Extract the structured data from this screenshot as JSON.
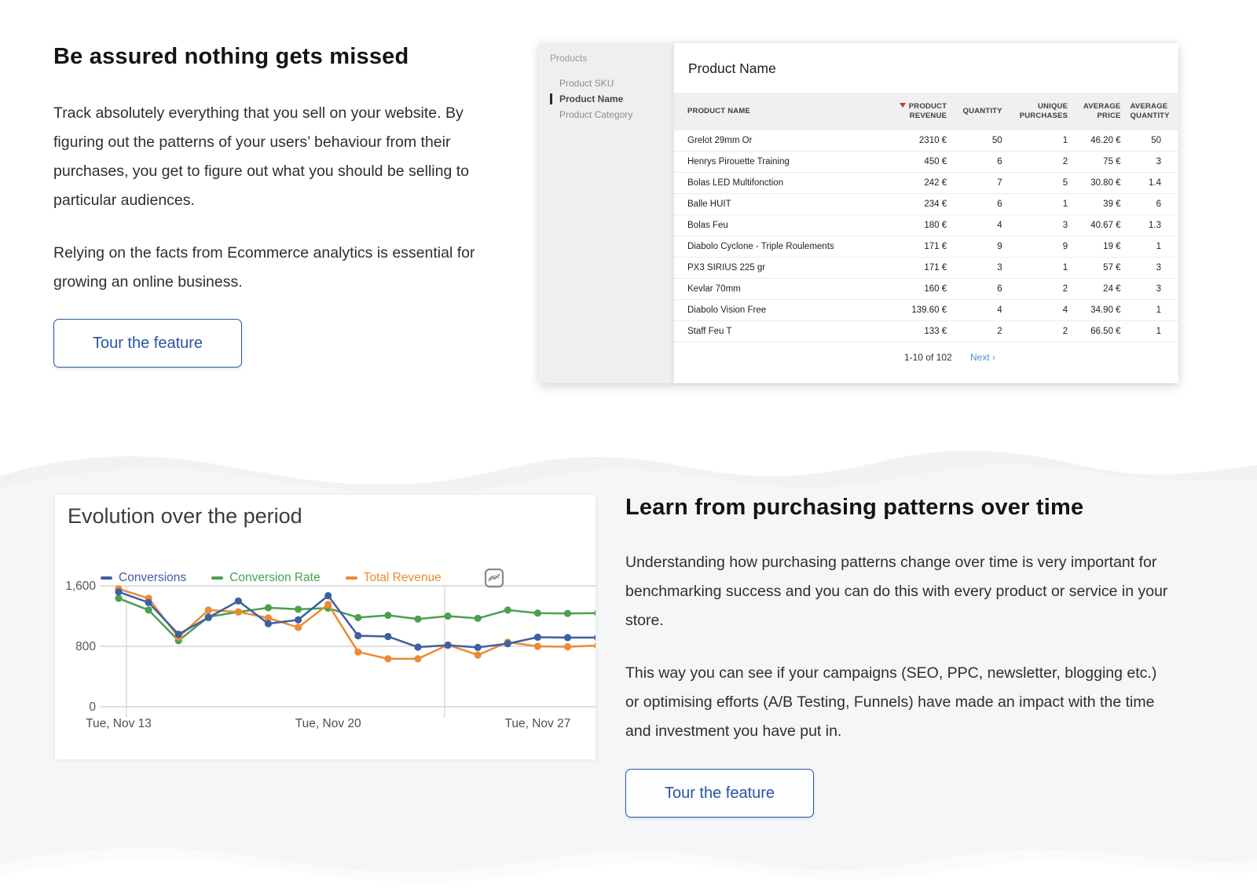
{
  "section1": {
    "heading": "Be assured nothing gets missed",
    "para1": "Track absolutely everything that you sell on your website. By figuring out the patterns of your users’ behaviour from their purchases, you get to figure out what you should be selling to particular audiences.",
    "para2": "Relying on the facts from Ecommerce analytics is essential for growing an online business.",
    "button_label": "Tour the feature"
  },
  "section2": {
    "heading": "Learn from purchasing patterns over time",
    "para1": "Understanding how purchasing patterns change over time is very important for benchmarking success and you can do this with every product or service in your store.",
    "para2": "This way you can see if your campaigns (SEO, PPC, newsletter, blogging etc.) or optimising efforts (A/B Testing, Funnels) have made an impact with the time and investment you have put in.",
    "button_label": "Tour the feature"
  },
  "product_panel": {
    "sidebar": {
      "title": "Products",
      "items": [
        {
          "label": "Product SKU",
          "active": false
        },
        {
          "label": "Product Name",
          "active": true
        },
        {
          "label": "Product Category",
          "active": false
        }
      ]
    },
    "title": "Product Name",
    "table": {
      "columns": [
        "Product Name",
        "Product Revenue",
        "Quantity",
        "Unique Purchases",
        "Average Price",
        "Average Quantity"
      ],
      "sort_column_index": 1,
      "rows": [
        [
          "Grelot 29mm Or",
          "2310 €",
          "50",
          "1",
          "46.20 €",
          "50"
        ],
        [
          "Henrys Pirouette Training",
          "450 €",
          "6",
          "2",
          "75 €",
          "3"
        ],
        [
          "Bolas LED Multifonction",
          "242 €",
          "7",
          "5",
          "30.80 €",
          "1.4"
        ],
        [
          "Balle HUIT",
          "234 €",
          "6",
          "1",
          "39 €",
          "6"
        ],
        [
          "Bolas Feu",
          "180 €",
          "4",
          "3",
          "40.67 €",
          "1.3"
        ],
        [
          "Diabolo Cyclone - Triple Roulements",
          "171 €",
          "9",
          "9",
          "19 €",
          "1"
        ],
        [
          "PX3 SIRIUS 225 gr",
          "171 €",
          "3",
          "1",
          "57 €",
          "3"
        ],
        [
          "Kevlar 70mm",
          "160 €",
          "6",
          "2",
          "24 €",
          "3"
        ],
        [
          "Diabolo Vision Free",
          "139.60 €",
          "4",
          "4",
          "34.90 €",
          "1"
        ],
        [
          "Staff Feu T",
          "133 €",
          "2",
          "2",
          "66.50 €",
          "1"
        ]
      ],
      "pagination": {
        "range": "1-10 of 102",
        "next_label": "Next ›"
      }
    }
  },
  "chart_data": {
    "type": "line",
    "title": "Evolution over the period",
    "x_tick_labels": [
      "Tue, Nov 13",
      "Tue, Nov 20",
      "Tue, Nov 27"
    ],
    "x_tick_indices": [
      0,
      7,
      14
    ],
    "n_points": 17,
    "ylim": [
      0,
      1600
    ],
    "yticks": [
      1600,
      800,
      0
    ],
    "ytick_labels": [
      "1,600",
      "800",
      "0"
    ],
    "grid": "on",
    "legend_position": "top",
    "series": [
      {
        "name": "Conversions",
        "color": "#3e5fa3",
        "values": [
          1520,
          1380,
          960,
          1180,
          1400,
          1100,
          1150,
          1470,
          940,
          930,
          790,
          815,
          785,
          835,
          920,
          915,
          915
        ]
      },
      {
        "name": "Conversion Rate",
        "color": "#4aa04e",
        "values": [
          1435,
          1280,
          875,
          1190,
          1255,
          1310,
          1290,
          1305,
          1180,
          1210,
          1160,
          1200,
          1170,
          1280,
          1240,
          1235,
          1240
        ]
      },
      {
        "name": "Total Revenue",
        "color": "#ec8b33",
        "values": [
          1560,
          1435,
          920,
          1280,
          1255,
          1175,
          1050,
          1355,
          725,
          635,
          635,
          820,
          685,
          855,
          800,
          795,
          810
        ]
      }
    ]
  },
  "accents": {
    "link_blue": "#4a90d2",
    "button_blue": "#2b53a4",
    "sort_arrow_red": "#c23b2e"
  }
}
